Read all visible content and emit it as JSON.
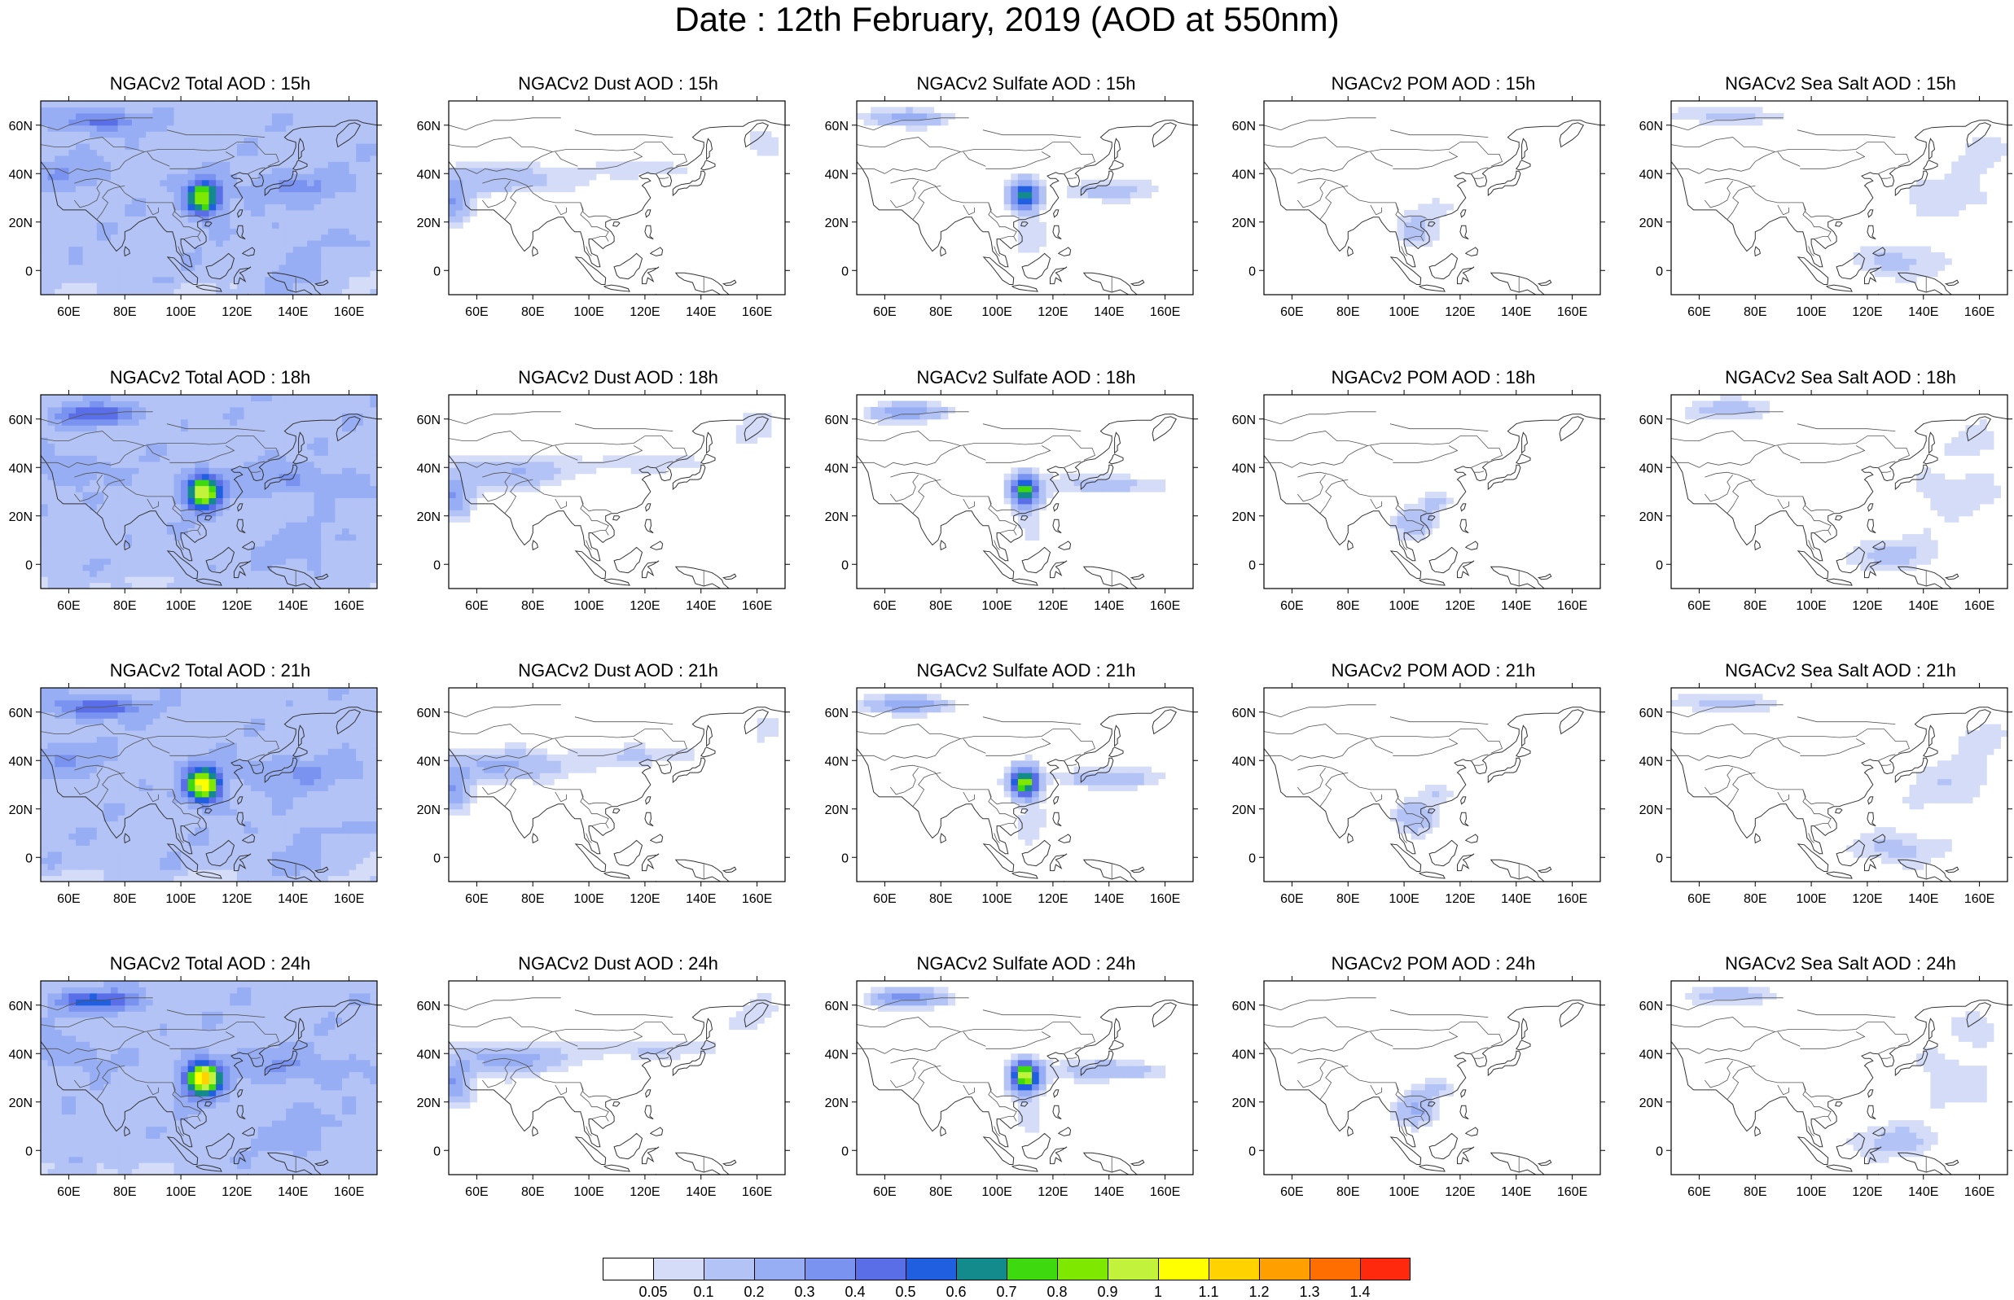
{
  "title": "Date : 12th February, 2019 (AOD at 550nm)",
  "columns": [
    "Total",
    "Dust",
    "Sulfate",
    "POM",
    "Sea Salt"
  ],
  "rows": [
    "15h",
    "18h",
    "21h",
    "24h"
  ],
  "panels": [
    [
      {
        "title": "NGACv2 Total AOD : 15h",
        "species": "total",
        "hour": "15h"
      },
      {
        "title": "NGACv2 Dust AOD : 15h",
        "species": "dust",
        "hour": "15h"
      },
      {
        "title": "NGACv2 Sulfate AOD : 15h",
        "species": "sulfate",
        "hour": "15h"
      },
      {
        "title": "NGACv2 POM AOD : 15h",
        "species": "pom",
        "hour": "15h"
      },
      {
        "title": "NGACv2 Sea Salt AOD : 15h",
        "species": "seasalt",
        "hour": "15h"
      }
    ],
    [
      {
        "title": "NGACv2 Total AOD : 18h",
        "species": "total",
        "hour": "18h"
      },
      {
        "title": "NGACv2 Dust AOD : 18h",
        "species": "dust",
        "hour": "18h"
      },
      {
        "title": "NGACv2 Sulfate AOD : 18h",
        "species": "sulfate",
        "hour": "18h"
      },
      {
        "title": "NGACv2 POM AOD : 18h",
        "species": "pom",
        "hour": "18h"
      },
      {
        "title": "NGACv2 Sea Salt AOD : 18h",
        "species": "seasalt",
        "hour": "18h"
      }
    ],
    [
      {
        "title": "NGACv2 Total AOD : 21h",
        "species": "total",
        "hour": "21h"
      },
      {
        "title": "NGACv2 Dust AOD : 21h",
        "species": "dust",
        "hour": "21h"
      },
      {
        "title": "NGACv2 Sulfate AOD : 21h",
        "species": "sulfate",
        "hour": "21h"
      },
      {
        "title": "NGACv2 POM AOD : 21h",
        "species": "pom",
        "hour": "21h"
      },
      {
        "title": "NGACv2 Sea Salt AOD : 21h",
        "species": "seasalt",
        "hour": "21h"
      }
    ],
    [
      {
        "title": "NGACv2 Total AOD : 24h",
        "species": "total",
        "hour": "24h"
      },
      {
        "title": "NGACv2 Dust AOD : 24h",
        "species": "dust",
        "hour": "24h"
      },
      {
        "title": "NGACv2 Sulfate AOD : 24h",
        "species": "sulfate",
        "hour": "24h"
      },
      {
        "title": "NGACv2 POM AOD : 24h",
        "species": "pom",
        "hour": "24h"
      },
      {
        "title": "NGACv2 Sea Salt  AOD : 24h",
        "species": "seasalt",
        "hour": "24h"
      }
    ]
  ],
  "map": {
    "lon_range": [
      50,
      170
    ],
    "lat_range": [
      -10,
      70
    ],
    "lon_ticks": [
      60,
      80,
      100,
      120,
      140,
      160
    ],
    "lon_tick_labels": [
      "60E",
      "80E",
      "100E",
      "120E",
      "140E",
      "160E"
    ],
    "lat_ticks": [
      0,
      20,
      40,
      60
    ],
    "lat_tick_labels": [
      "0",
      "20N",
      "40N",
      "60N"
    ]
  },
  "colorbar": {
    "levels": [
      "0.05",
      "0.1",
      "0.2",
      "0.3",
      "0.4",
      "0.5",
      "0.6",
      "0.7",
      "0.8",
      "0.9",
      "1",
      "1.1",
      "1.2",
      "1.3",
      "1.4"
    ],
    "colors": [
      "#ffffff",
      "#d4dcf8",
      "#b3c3f6",
      "#97aef4",
      "#7a92f0",
      "#5a6ee8",
      "#1f5fe0",
      "#138a8c",
      "#3fd910",
      "#7ee800",
      "#c2f23c",
      "#ffff00",
      "#ffd200",
      "#ffa000",
      "#ff6e00",
      "#ff2a0e"
    ]
  }
}
